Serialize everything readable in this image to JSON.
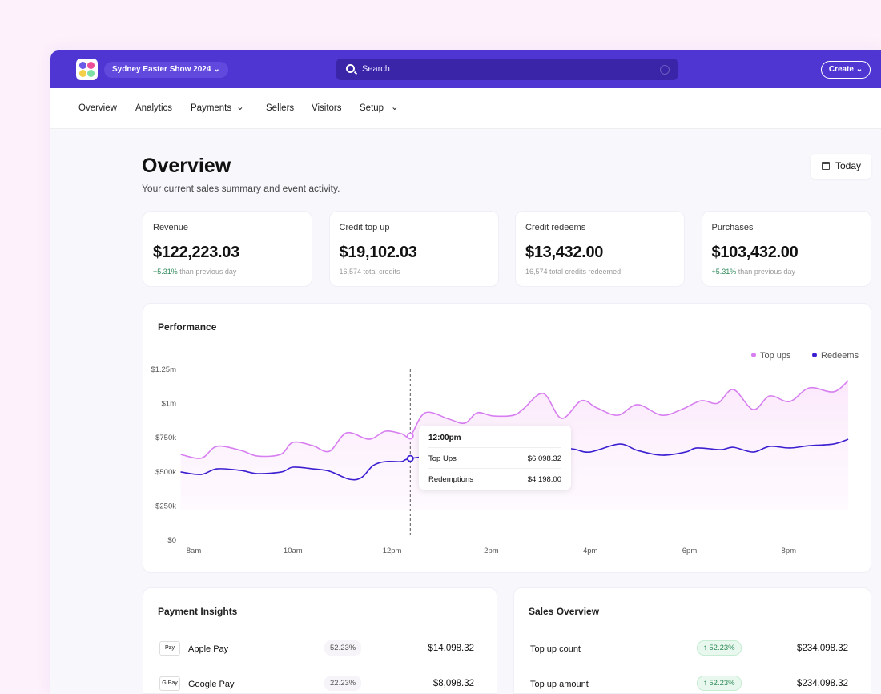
{
  "header": {
    "event_name": "Sydney Easter Show 2024",
    "search_placeholder": "Search",
    "create_label": "Create"
  },
  "nav": [
    "Overview",
    "Analytics",
    "Payments",
    "Sellers",
    "Visitors",
    "Setup"
  ],
  "page": {
    "title": "Overview",
    "subtitle": "Your current sales summary and event activity.",
    "date_filter": "Today"
  },
  "stats": [
    {
      "label": "Revenue",
      "value": "$122,223.03",
      "highlight": "+5.31%",
      "note": "than previous day"
    },
    {
      "label": "Credit top up",
      "value": "$19,102.03",
      "highlight": "",
      "note": "16,574 total credits"
    },
    {
      "label": "Credit redeems",
      "value": "$13,432.00",
      "highlight": "",
      "note": "16,574 total credits redeemed"
    },
    {
      "label": "Purchases",
      "value": "$103,432.00",
      "highlight": "+5.31%",
      "note": "than previous day"
    }
  ],
  "performance": {
    "title": "Performance",
    "tooltip": {
      "time": "12:00pm",
      "rows": [
        {
          "label": "Top Ups",
          "value": "$6,098.32"
        },
        {
          "label": "Redemptions",
          "value": "$4,198.00"
        }
      ]
    }
  },
  "chart_data": {
    "type": "line",
    "legend_position": "top-right",
    "y_ticks": [
      "$0",
      "$250k",
      "$500k",
      "$750k",
      "$1m",
      "$1.25m"
    ],
    "ylim": [
      0,
      1250000
    ],
    "x_ticks": [
      "8am",
      "10am",
      "12pm",
      "2pm",
      "4pm",
      "6pm",
      "8pm"
    ],
    "colors": {
      "Top ups": "#d77ef0",
      "Redeems": "#3b1fd1"
    },
    "series": [
      {
        "name": "Top ups",
        "points": [
          [
            "07:44",
            628000
          ],
          [
            "08:09",
            600000
          ],
          [
            "08:28",
            687000
          ],
          [
            "08:57",
            657000
          ],
          [
            "09:17",
            616000
          ],
          [
            "09:45",
            628000
          ],
          [
            "10:00",
            716000
          ],
          [
            "10:24",
            692000
          ],
          [
            "10:44",
            651000
          ],
          [
            "11:05",
            786000
          ],
          [
            "11:32",
            739000
          ],
          [
            "11:52",
            798000
          ],
          [
            "12:11",
            780000
          ],
          [
            "12:22",
            763000
          ],
          [
            "12:40",
            933000
          ],
          [
            "13:09",
            886000
          ],
          [
            "13:28",
            857000
          ],
          [
            "13:43",
            933000
          ],
          [
            "14:02",
            910000
          ],
          [
            "14:27",
            915000
          ],
          [
            "14:39",
            962000
          ],
          [
            "15:03",
            1074000
          ],
          [
            "15:25",
            892000
          ],
          [
            "15:49",
            1021000
          ],
          [
            "16:08",
            968000
          ],
          [
            "16:33",
            915000
          ],
          [
            "16:57",
            992000
          ],
          [
            "17:26",
            915000
          ],
          [
            "17:50",
            956000
          ],
          [
            "18:14",
            1021000
          ],
          [
            "18:34",
            1003000
          ],
          [
            "18:53",
            1103000
          ],
          [
            "19:17",
            956000
          ],
          [
            "19:37",
            1056000
          ],
          [
            "20:01",
            1015000
          ],
          [
            "20:25",
            1115000
          ],
          [
            "20:54",
            1086000
          ],
          [
            "21:12",
            1168000
          ]
        ]
      },
      {
        "name": "Redeems",
        "points": [
          [
            "07:44",
            499000
          ],
          [
            "08:09",
            481000
          ],
          [
            "08:28",
            522000
          ],
          [
            "08:57",
            510000
          ],
          [
            "09:17",
            487000
          ],
          [
            "09:46",
            499000
          ],
          [
            "10:00",
            534000
          ],
          [
            "10:24",
            522000
          ],
          [
            "10:44",
            505000
          ],
          [
            "11:08",
            446000
          ],
          [
            "11:23",
            458000
          ],
          [
            "11:37",
            546000
          ],
          [
            "11:52",
            575000
          ],
          [
            "12:11",
            575000
          ],
          [
            "12:22",
            598000
          ],
          [
            "13:09",
            630000
          ],
          [
            "14:07",
            650000
          ],
          [
            "15:05",
            660000
          ],
          [
            "15:37",
            669000
          ],
          [
            "15:59",
            645000
          ],
          [
            "16:35",
            704000
          ],
          [
            "16:57",
            657000
          ],
          [
            "17:26",
            622000
          ],
          [
            "17:55",
            645000
          ],
          [
            "18:09",
            675000
          ],
          [
            "18:38",
            663000
          ],
          [
            "18:53",
            680000
          ],
          [
            "19:17",
            645000
          ],
          [
            "19:37",
            687000
          ],
          [
            "20:01",
            675000
          ],
          [
            "20:25",
            692000
          ],
          [
            "20:54",
            704000
          ],
          [
            "21:12",
            739000
          ]
        ]
      }
    ],
    "hover_time": "12:22"
  },
  "payment_insights": {
    "title": "Payment Insights",
    "rows": [
      {
        "icon": "Pay",
        "name": "Apple Pay",
        "percent": "52.23%",
        "amount": "$14,098.32"
      },
      {
        "icon": "G Pay",
        "name": "Google Pay",
        "percent": "22.23%",
        "amount": "$8,098.32"
      }
    ]
  },
  "sales_overview": {
    "title": "Sales Overview",
    "rows": [
      {
        "name": "Top up count",
        "change": "↑ 52.23%",
        "amount": "$234,098.32"
      },
      {
        "name": "Top up amount",
        "change": "↑ 52.23%",
        "amount": "$234,098.32"
      }
    ]
  }
}
